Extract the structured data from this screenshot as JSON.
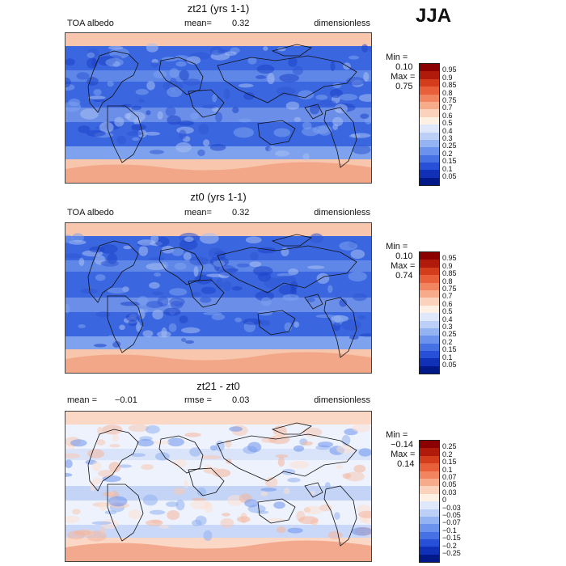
{
  "season": "JJA",
  "panels": [
    {
      "title": "zt21 (yrs 1-1)",
      "left_label": "TOA albedo",
      "mean_label": "mean=",
      "mean_value": "0.32",
      "units": "dimensionless",
      "min_label": "Min =",
      "min_value": "0.10",
      "max_label": "Max =",
      "max_value": "0.75",
      "colorbar_labels": [
        "0.95",
        "0.9",
        "0.85",
        "0.8",
        "0.75",
        "0.7",
        "0.6",
        "0.5",
        "0.4",
        "0.3",
        "0.25",
        "0.2",
        "0.15",
        "0.1",
        "0.05"
      ],
      "colorbar_colors": [
        "#8b0000",
        "#b01a0a",
        "#d33d1c",
        "#e85f3a",
        "#f2855f",
        "#f7ab8a",
        "#fbd3bc",
        "#fff0e4",
        "#dfe8fb",
        "#bcd0f7",
        "#93b3f2",
        "#6b92ec",
        "#4571e5",
        "#2650d8",
        "#1030b8",
        "#001888"
      ],
      "map_palette": {
        "ocean": "#3a66e0",
        "ocean_light": "#7ea2ee",
        "ice": "#f7c6ad",
        "ice_strong": "#f2a888",
        "mid": "#a8c0f3"
      }
    },
    {
      "title": "zt0 (yrs 1-1)",
      "left_label": "TOA albedo",
      "mean_label": "mean=",
      "mean_value": "0.32",
      "units": "dimensionless",
      "min_label": "Min =",
      "min_value": "0.10",
      "max_label": "Max =",
      "max_value": "0.74",
      "colorbar_labels": [
        "0.95",
        "0.9",
        "0.85",
        "0.8",
        "0.75",
        "0.7",
        "0.6",
        "0.5",
        "0.4",
        "0.3",
        "0.25",
        "0.2",
        "0.15",
        "0.1",
        "0.05"
      ],
      "colorbar_colors": [
        "#8b0000",
        "#b01a0a",
        "#d33d1c",
        "#e85f3a",
        "#f2855f",
        "#f7ab8a",
        "#fbd3bc",
        "#fff0e4",
        "#dfe8fb",
        "#bcd0f7",
        "#93b3f2",
        "#6b92ec",
        "#4571e5",
        "#2650d8",
        "#1030b8",
        "#001888"
      ],
      "map_palette": {
        "ocean": "#3a66e0",
        "ocean_light": "#7ea2ee",
        "ice": "#f7c6ad",
        "ice_strong": "#f2a888",
        "mid": "#a8c0f3"
      }
    },
    {
      "title": "zt21 - zt0",
      "left_label": "mean =",
      "left_value": "−0.01",
      "mean_label": "rmse =",
      "mean_value": "0.03",
      "units": "dimensionless",
      "min_label": "Min =",
      "min_value": "−0.14",
      "max_label": "Max =",
      "max_value": "0.14",
      "colorbar_labels": [
        "0.25",
        "0.2",
        "0.15",
        "0.1",
        "0.07",
        "0.05",
        "0.03",
        "0",
        "−0.03",
        "−0.05",
        "−0.07",
        "−0.1",
        "−0.15",
        "−0.2",
        "−0.25"
      ],
      "colorbar_colors": [
        "#8b0000",
        "#b01a0a",
        "#d33d1c",
        "#e85f3a",
        "#f2855f",
        "#f7ab8a",
        "#fbd3bc",
        "#fff0e4",
        "#dfe8fb",
        "#bcd0f7",
        "#93b3f2",
        "#6b92ec",
        "#4571e5",
        "#2650d8",
        "#1030b8",
        "#001888"
      ],
      "map_palette": {
        "ocean": "#eef2fd",
        "ocean_light": "#c9d8f8",
        "ice": "#fbd7c6",
        "ice_strong": "#f3a98d",
        "mid": "#8fb0f0"
      }
    }
  ]
}
